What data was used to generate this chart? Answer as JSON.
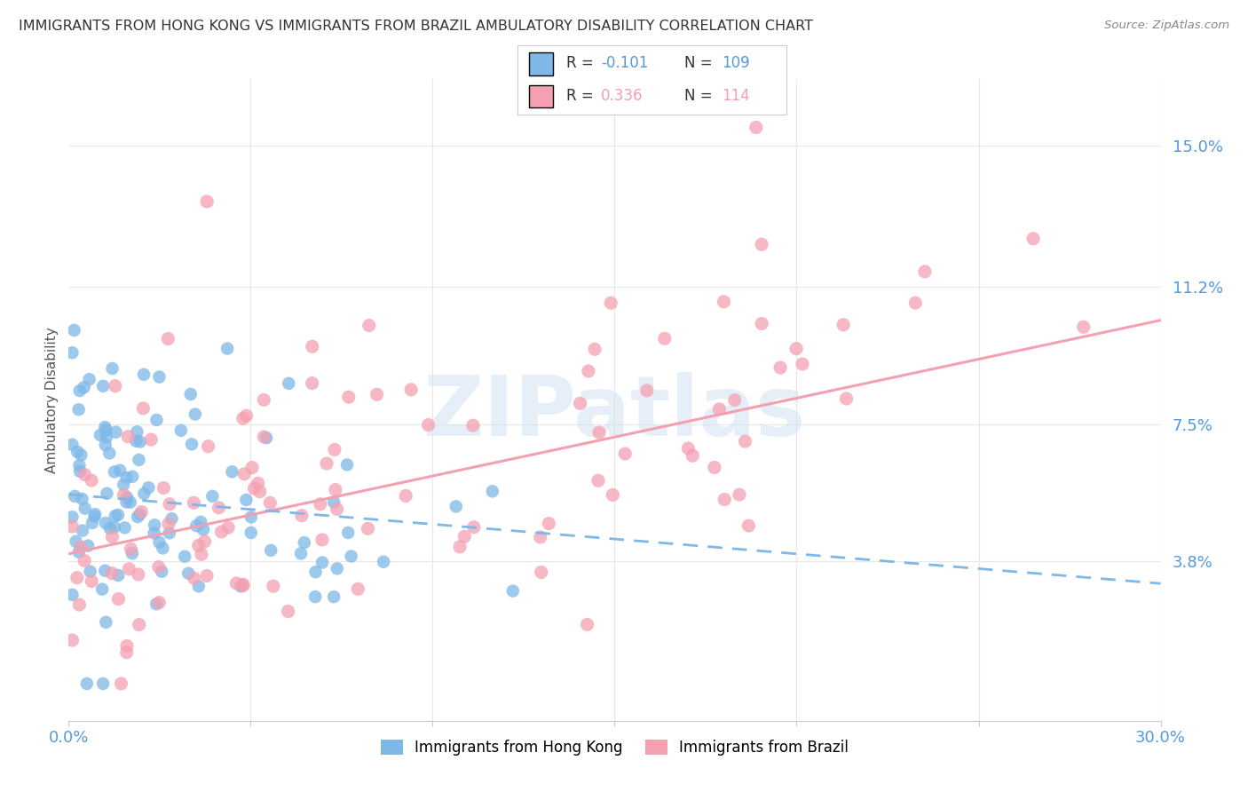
{
  "title": "IMMIGRANTS FROM HONG KONG VS IMMIGRANTS FROM BRAZIL AMBULATORY DISABILITY CORRELATION CHART",
  "source": "Source: ZipAtlas.com",
  "ylabel": "Ambulatory Disability",
  "x_min": 0.0,
  "x_max": 0.3,
  "y_min": -0.005,
  "y_max": 0.168,
  "y_ticks": [
    0.038,
    0.075,
    0.112,
    0.15
  ],
  "y_tick_labels": [
    "3.8%",
    "7.5%",
    "11.2%",
    "15.0%"
  ],
  "x_ticks": [
    0.0,
    0.05,
    0.1,
    0.15,
    0.2,
    0.25,
    0.3
  ],
  "x_tick_labels": [
    "0.0%",
    "",
    "",
    "",
    "",
    "",
    "30.0%"
  ],
  "hk_color": "#7DB8E8",
  "brazil_color": "#F4A0B0",
  "hk_R": -0.101,
  "hk_N": 109,
  "brazil_R": 0.336,
  "brazil_N": 114,
  "hk_label": "Immigrants from Hong Kong",
  "brazil_label": "Immigrants from Brazil",
  "watermark": "ZIPatlas",
  "background_color": "#ffffff",
  "grid_color": "#e8e8e8",
  "title_color": "#333333",
  "axis_label_color": "#555555",
  "tick_color": "#5599dd",
  "hk_trend_start_x": 0.0,
  "hk_trend_start_y": 0.056,
  "hk_trend_end_x": 0.3,
  "hk_trend_end_y": 0.032,
  "brazil_trend_start_x": 0.0,
  "brazil_trend_start_y": 0.04,
  "brazil_trend_end_x": 0.3,
  "brazil_trend_end_y": 0.103
}
